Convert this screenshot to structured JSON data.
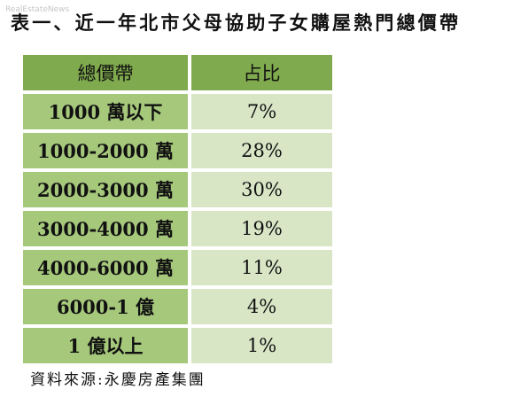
{
  "title": "表一、近一年北市父母協助子女購屋熱門總價帶",
  "watermark": "RealEstateNews",
  "table": {
    "headers": [
      "總價帶",
      "占比"
    ],
    "rows": [
      {
        "range": "1000 萬以下",
        "share": "7%"
      },
      {
        "range": "1000-2000 萬",
        "share": "28%"
      },
      {
        "range": "2000-3000 萬",
        "share": "30%"
      },
      {
        "range": "3000-4000 萬",
        "share": "19%"
      },
      {
        "range": "4000-6000 萬",
        "share": "11%"
      },
      {
        "range": "6000-1 億",
        "share": "4%"
      },
      {
        "range": "1 億以上",
        "share": "1%"
      }
    ]
  },
  "source": "資料來源:永慶房產集團",
  "colors": {
    "header_bg": "#7faa4d",
    "first_col_bg": "#a6c87b",
    "second_col_bg": "#d8e6c6"
  }
}
